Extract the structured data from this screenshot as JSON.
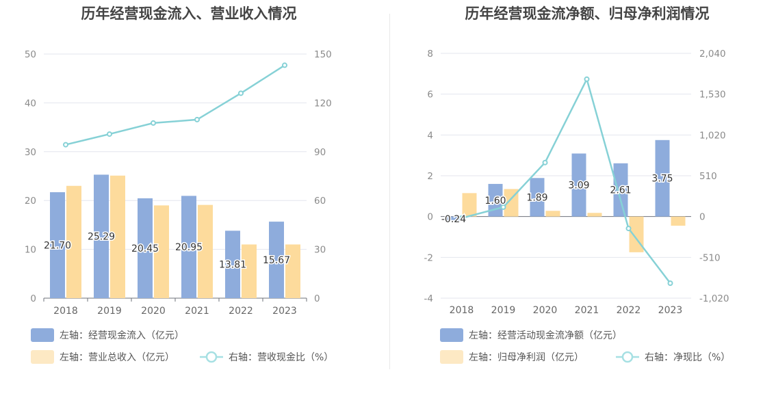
{
  "chart_data": [
    {
      "type": "bar",
      "title": "历年经营现金流入、营业收入情况",
      "categories": [
        "2018",
        "2019",
        "2020",
        "2021",
        "2022",
        "2023"
      ],
      "left_axis": {
        "min": 0,
        "max": 50,
        "ticks": [
          "0",
          "10",
          "20",
          "30",
          "40",
          "50"
        ]
      },
      "right_axis": {
        "min": 0,
        "max": 150,
        "ticks": [
          "0",
          "30",
          "60",
          "90",
          "120",
          "150"
        ]
      },
      "series": [
        {
          "name": "左轴：经营现金流入（亿元）",
          "kind": "bar",
          "axis": "left",
          "color": "#8eacdc",
          "values": [
            21.7,
            25.29,
            20.45,
            20.95,
            13.81,
            15.67
          ],
          "labels": [
            "21.70",
            "25.29",
            "20.45",
            "20.95",
            "13.81",
            "15.67"
          ]
        },
        {
          "name": "左轴：营业总收入（亿元）",
          "kind": "bar",
          "axis": "left",
          "color": "#fddb9c",
          "values": [
            23.0,
            25.1,
            19.0,
            19.1,
            11.0,
            11.0
          ]
        },
        {
          "name": "右轴：营收现金比（%）",
          "kind": "line",
          "axis": "right",
          "color": "#86d1d6",
          "values": [
            94.3,
            100.8,
            107.6,
            109.7,
            125.9,
            143.1
          ]
        }
      ],
      "legend_placement": "bottom",
      "grid": true
    },
    {
      "type": "bar",
      "title": "历年经营现金流净额、归母净利润情况",
      "categories": [
        "2018",
        "2019",
        "2020",
        "2021",
        "2022",
        "2023"
      ],
      "left_axis": {
        "min": -4,
        "max": 8,
        "ticks": [
          "-4",
          "-2",
          "0",
          "2",
          "4",
          "6",
          "8"
        ]
      },
      "right_axis": {
        "min": -1020,
        "max": 2040,
        "ticks": [
          "-1,020",
          "-510",
          "0",
          "510",
          "1,020",
          "1,530",
          "2,040"
        ]
      },
      "series": [
        {
          "name": "左轴：经营活动现金流净额（亿元）",
          "kind": "bar",
          "axis": "left",
          "color": "#8eacdc",
          "values": [
            -0.24,
            1.6,
            1.89,
            3.09,
            2.61,
            3.75
          ],
          "labels": [
            "-0.24",
            "1.60",
            "1.89",
            "3.09",
            "2.61",
            "3.75"
          ]
        },
        {
          "name": "左轴：归母净利润（亿元）",
          "kind": "bar",
          "axis": "left",
          "color": "#fddb9c",
          "values": [
            1.15,
            1.35,
            0.28,
            0.18,
            -1.75,
            -0.45
          ]
        },
        {
          "name": "右轴：净现比（%）",
          "kind": "line",
          "axis": "right",
          "color": "#86d1d6",
          "values": [
            -20,
            118,
            675,
            1717,
            -149,
            -833
          ]
        }
      ],
      "legend_placement": "bottom",
      "grid": true
    }
  ]
}
